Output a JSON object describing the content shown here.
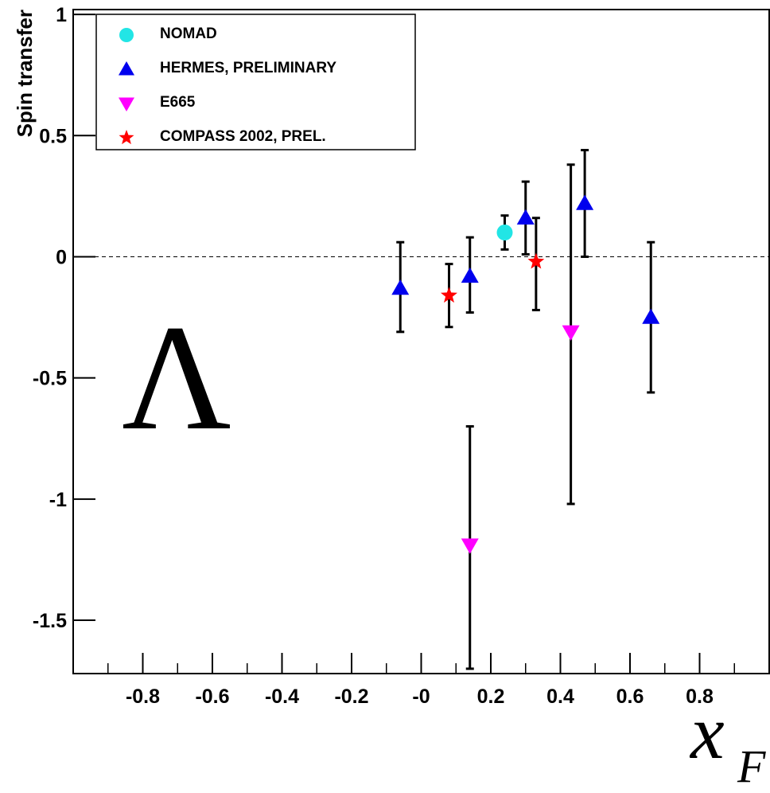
{
  "chart_data": {
    "type": "scatter",
    "xlabel": "x",
    "xlabel_subscript": "F",
    "ylabel": "Spin transfer",
    "annotation": "Λ",
    "xlim": [
      -1.0,
      1.0
    ],
    "ylim": [
      -1.72,
      1.02
    ],
    "xticks": [
      {
        "value": -0.8,
        "label": "-0.8"
      },
      {
        "value": -0.6,
        "label": "-0.6"
      },
      {
        "value": -0.4,
        "label": "-0.4"
      },
      {
        "value": -0.2,
        "label": "-0.2"
      },
      {
        "value": 0.0,
        "label": "-0"
      },
      {
        "value": 0.2,
        "label": "0.2"
      },
      {
        "value": 0.4,
        "label": "0.4"
      },
      {
        "value": 0.6,
        "label": "0.6"
      },
      {
        "value": 0.8,
        "label": "0.8"
      }
    ],
    "yticks": [
      {
        "value": 1.0,
        "label": "1"
      },
      {
        "value": 0.5,
        "label": "0.5"
      },
      {
        "value": 0.0,
        "label": "0"
      },
      {
        "value": -0.5,
        "label": "-0.5"
      },
      {
        "value": -1.0,
        "label": "-1"
      },
      {
        "value": -1.5,
        "label": "-1.5"
      }
    ],
    "reference_line": {
      "y": 0,
      "style": "dashed"
    },
    "legend_position": "top-left",
    "series": [
      {
        "name": "NOMAD",
        "marker": "circle",
        "color": "#22e5e5",
        "points": [
          {
            "x": 0.24,
            "y": 0.1,
            "err_low": 0.07,
            "err_high": 0.07
          }
        ]
      },
      {
        "name": "HERMES, PRELIMINARY",
        "marker": "triangle-up",
        "color": "#0000ee",
        "points": [
          {
            "x": -0.06,
            "y": -0.13,
            "err_low": 0.18,
            "err_high": 0.19
          },
          {
            "x": 0.14,
            "y": -0.08,
            "err_low": 0.15,
            "err_high": 0.16
          },
          {
            "x": 0.3,
            "y": 0.16,
            "err_low": 0.15,
            "err_high": 0.15
          },
          {
            "x": 0.47,
            "y": 0.22,
            "err_low": 0.22,
            "err_high": 0.22
          },
          {
            "x": 0.66,
            "y": -0.25,
            "err_low": 0.31,
            "err_high": 0.31
          }
        ]
      },
      {
        "name": "E665",
        "marker": "triangle-down",
        "color": "#ff00ff",
        "points": [
          {
            "x": 0.14,
            "y": -1.19,
            "err_low": 0.51,
            "err_high": 0.49
          },
          {
            "x": 0.43,
            "y": -0.31,
            "err_low": 0.71,
            "err_high": 0.69
          }
        ]
      },
      {
        "name": "COMPASS 2002, PREL.",
        "marker": "star",
        "color": "#ff0000",
        "points": [
          {
            "x": 0.08,
            "y": -0.16,
            "err_low": 0.13,
            "err_high": 0.13
          },
          {
            "x": 0.33,
            "y": -0.02,
            "err_low": 0.2,
            "err_high": 0.18
          }
        ]
      }
    ]
  }
}
